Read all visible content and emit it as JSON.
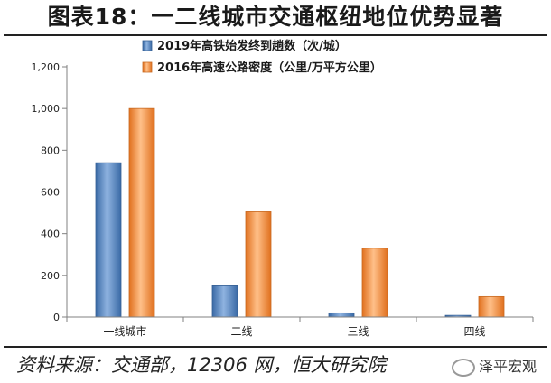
{
  "chart_data": {
    "type": "bar",
    "title": "图表18：一二线城市交通枢纽地位优势显著",
    "categories": [
      "一线城市",
      "二线",
      "三线",
      "四线"
    ],
    "series": [
      {
        "name": "2019年高铁始发终到趟数（次/城）",
        "values": [
          740,
          150,
          20,
          8
        ],
        "color": "#4f81bd"
      },
      {
        "name": "2016年高速公路密度（公里/万平方公里）",
        "values": [
          1000,
          505,
          330,
          98
        ],
        "color": "#f79646"
      }
    ],
    "ylim": [
      0,
      1200
    ],
    "yticks": [
      0,
      200,
      400,
      600,
      800,
      1000,
      1200
    ],
    "ytick_labels": [
      "0",
      "200",
      "400",
      "600",
      "800",
      "1,000",
      "1,200"
    ],
    "xlabel": "",
    "ylabel": "",
    "legend": "top-left"
  },
  "source": "资料来源：交通部，12306 网，恒大研究院",
  "watermark": "泽平宏观"
}
